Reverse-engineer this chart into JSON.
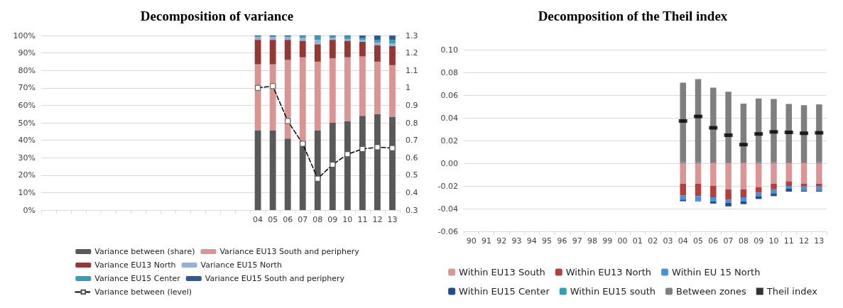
{
  "chart_data": [
    {
      "type": "bar",
      "title": "Decomposition of variance",
      "stacked": true,
      "categories": [
        null,
        null,
        null,
        null,
        null,
        null,
        null,
        null,
        null,
        null,
        null,
        null,
        null,
        null,
        "04",
        "05",
        "06",
        "07",
        "08",
        "09",
        "10",
        "11",
        "12",
        "13"
      ],
      "series": [
        {
          "name": "Variance between (share)",
          "color": "#595959",
          "values": [
            null,
            null,
            null,
            null,
            null,
            null,
            null,
            null,
            null,
            null,
            null,
            null,
            null,
            null,
            45.5,
            45.5,
            41,
            39.5,
            45.5,
            50,
            51,
            54,
            55,
            53.5
          ]
        },
        {
          "name": "Variance EU13 South and periphery",
          "color": "#d99594",
          "values": [
            null,
            null,
            null,
            null,
            null,
            null,
            null,
            null,
            null,
            null,
            null,
            null,
            null,
            null,
            38,
            38,
            45,
            48,
            39.5,
            37,
            36.5,
            34,
            30,
            29.5
          ]
        },
        {
          "name": "Variance EU13 North",
          "color": "#953735",
          "values": [
            null,
            null,
            null,
            null,
            null,
            null,
            null,
            null,
            null,
            null,
            null,
            null,
            null,
            null,
            14,
            14,
            11.5,
            9.5,
            10,
            10.5,
            9.5,
            8.5,
            9.5,
            11
          ]
        },
        {
          "name": "Variance EU15 North",
          "color": "#95b3d7",
          "values": [
            null,
            null,
            null,
            null,
            null,
            null,
            null,
            null,
            null,
            null,
            null,
            null,
            null,
            null,
            1.5,
            1.5,
            1.5,
            1.5,
            2.5,
            1,
            1,
            1,
            1.5,
            1.5
          ]
        },
        {
          "name": "Variance EU15 Center",
          "color": "#31a0b4",
          "values": [
            null,
            null,
            null,
            null,
            null,
            null,
            null,
            null,
            null,
            null,
            null,
            null,
            null,
            null,
            0.5,
            0.5,
            0.5,
            1,
            2,
            1,
            1.5,
            1,
            1.5,
            2
          ]
        },
        {
          "name": "Variance EU15 South and periphery",
          "color": "#2e5a8f",
          "values": [
            null,
            null,
            null,
            null,
            null,
            null,
            null,
            null,
            null,
            null,
            null,
            null,
            null,
            null,
            0.5,
            0.5,
            0.5,
            0.5,
            0.5,
            0.5,
            0.5,
            1.5,
            2.5,
            2.5
          ]
        },
        {
          "name": "Variance between (level)",
          "type": "line",
          "axis": "y2",
          "color": "#000000",
          "marker": "square",
          "line_style": "dashed",
          "values": [
            null,
            null,
            null,
            null,
            null,
            null,
            null,
            null,
            null,
            null,
            null,
            null,
            null,
            null,
            1.0,
            1.01,
            0.81,
            0.68,
            0.48,
            0.56,
            0.62,
            0.65,
            0.66,
            0.655
          ]
        }
      ],
      "ylim": [
        0,
        100
      ],
      "yticks": [
        {
          "value": 0,
          "label": "0%"
        },
        {
          "value": 10,
          "label": "10%"
        },
        {
          "value": 20,
          "label": "20%"
        },
        {
          "value": 30,
          "label": "30%"
        },
        {
          "value": 40,
          "label": "40%"
        },
        {
          "value": 50,
          "label": "50%"
        },
        {
          "value": 60,
          "label": "60%"
        },
        {
          "value": 70,
          "label": "70%"
        },
        {
          "value": 80,
          "label": "80%"
        },
        {
          "value": 90,
          "label": "90%"
        },
        {
          "value": 100,
          "label": "100%"
        }
      ],
      "y2lim": [
        0.3,
        1.3
      ],
      "y2ticks": [
        0.3,
        0.4,
        0.5,
        0.6,
        0.7,
        0.8,
        0.9,
        1,
        1.1,
        1.2,
        1.3
      ],
      "grid": "y",
      "legend": "bottom"
    },
    {
      "type": "bar",
      "title": "Decomposition of the Theil index",
      "stacked": true,
      "categories": [
        "90",
        "91",
        "92",
        "93",
        "94",
        "95",
        "96",
        "97",
        "98",
        "99",
        "00",
        "01",
        "02",
        "03",
        "04",
        "05",
        "06",
        "07",
        "08",
        "09",
        "10",
        "11",
        "12",
        "13"
      ],
      "series": [
        {
          "name": "Within EU13 South",
          "color": "#da9694",
          "values": [
            null,
            null,
            null,
            null,
            null,
            null,
            null,
            null,
            null,
            null,
            null,
            null,
            null,
            null,
            -0.018,
            -0.018,
            -0.02,
            -0.023,
            -0.023,
            -0.021,
            -0.018,
            -0.016,
            -0.018,
            -0.018
          ]
        },
        {
          "name": "Within EU13 North",
          "color": "#b3403d",
          "values": [
            null,
            null,
            null,
            null,
            null,
            null,
            null,
            null,
            null,
            null,
            null,
            null,
            null,
            null,
            -0.0105,
            -0.011,
            -0.01,
            -0.009,
            -0.007,
            -0.005,
            -0.005,
            -0.004,
            -0.0025,
            -0.0025
          ]
        },
        {
          "name": "Within EU 15 North",
          "color": "#4a8fe0",
          "values": [
            null,
            null,
            null,
            null,
            null,
            null,
            null,
            null,
            null,
            null,
            null,
            null,
            null,
            null,
            -0.0035,
            -0.004,
            -0.0035,
            -0.003,
            -0.0035,
            -0.003,
            -0.0035,
            -0.0025,
            -0.0035,
            -0.0035
          ]
        },
        {
          "name": "Within EU15 Center",
          "color": "#1f4e8c",
          "values": [
            null,
            null,
            null,
            null,
            null,
            null,
            null,
            null,
            null,
            null,
            null,
            null,
            null,
            null,
            -0.0015,
            -0.0005,
            -0.002,
            -0.003,
            -0.0025,
            -0.0025,
            -0.0025,
            -0.0025,
            -0.001,
            -0.001
          ]
        },
        {
          "name": "Within EU15 south",
          "color": "#31a0b4",
          "values": [
            null,
            null,
            null,
            null,
            null,
            null,
            null,
            null,
            null,
            null,
            null,
            null,
            null,
            null,
            0.001,
            0.001,
            0.0005,
            0.0005,
            0.0005,
            0.001,
            0.001,
            0.0005,
            0.0005,
            0.001
          ]
        },
        {
          "name": "Between zones",
          "color": "#7f7f7f",
          "values": [
            null,
            null,
            null,
            null,
            null,
            null,
            null,
            null,
            null,
            null,
            null,
            null,
            null,
            null,
            0.07,
            0.073,
            0.066,
            0.0625,
            0.052,
            0.056,
            0.0555,
            0.0517,
            0.0506,
            0.0508
          ]
        },
        {
          "name": "Theil index",
          "type": "scatter",
          "color": "#000000",
          "marker": "square",
          "values": [
            null,
            null,
            null,
            null,
            null,
            null,
            null,
            null,
            null,
            null,
            null,
            null,
            null,
            null,
            0.0372,
            0.0412,
            0.0312,
            0.0247,
            0.0164,
            0.0258,
            0.0276,
            0.0272,
            0.0264,
            0.0268
          ]
        }
      ],
      "ylim": [
        -0.06,
        0.1
      ],
      "yticks": [
        {
          "value": -0.06,
          "label": "-0.06"
        },
        {
          "value": -0.04,
          "label": "-0.04"
        },
        {
          "value": -0.02,
          "label": "-0.02"
        },
        {
          "value": 0,
          "label": "0.00"
        },
        {
          "value": 0.02,
          "label": "0.02"
        },
        {
          "value": 0.04,
          "label": "0.04"
        },
        {
          "value": 0.06,
          "label": "0.06"
        },
        {
          "value": 0.08,
          "label": "0.08"
        },
        {
          "value": 0.1,
          "label": "0.10"
        }
      ],
      "grid": "y",
      "legend": "bottom"
    }
  ]
}
